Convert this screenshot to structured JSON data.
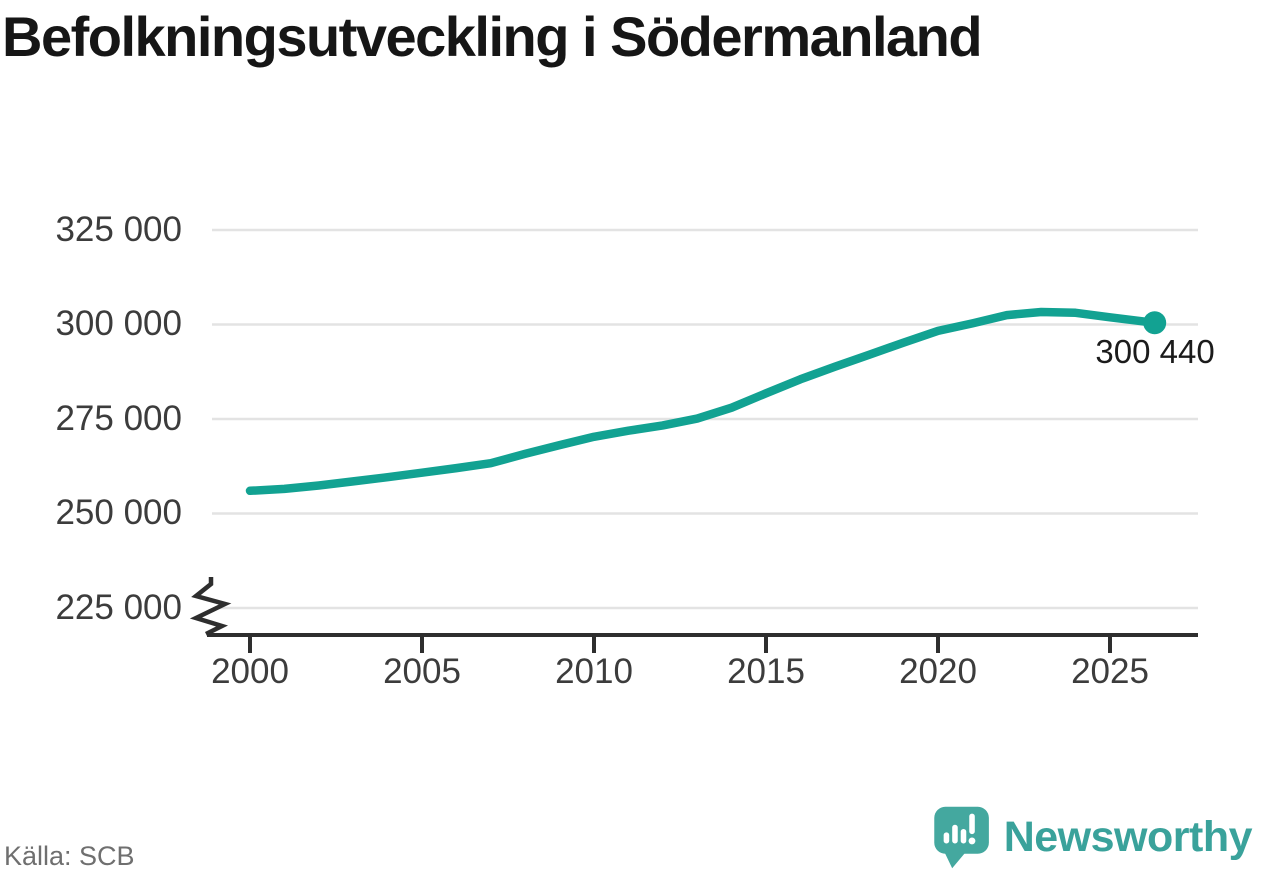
{
  "title": "Befolkningsutveckling i Södermanland",
  "source": "Källa: SCB",
  "annotation": {
    "label": "300 440"
  },
  "branding": {
    "wordmark": "Newsworthy",
    "logo_icon": "newsworthy-speech-bubble-bar-chart-icon",
    "logo_color": "#44a89f",
    "wordmark_color": "#3aa29b"
  },
  "colors": {
    "line": "#12a292",
    "grid": "#e3e3e3",
    "axis": "#2e2e2e",
    "tick_text": "#3c3c3c",
    "title_text": "#161616",
    "muted_text": "#6f6f6f",
    "background": "#ffffff"
  },
  "chart_data": {
    "type": "line",
    "title": "Befolkningsutveckling i Södermanland",
    "xlabel": "",
    "ylabel": "",
    "x_unit": "år",
    "y_unit": "invånare",
    "xlim": [
      1998.7,
      2027.6
    ],
    "ylim": [
      225000,
      332000
    ],
    "y_axis_break": true,
    "grid": "horizontal",
    "legend": "none",
    "x_ticks": [
      2000,
      2005,
      2010,
      2015,
      2020,
      2025
    ],
    "x_tick_labels": [
      "2000",
      "2005",
      "2010",
      "2015",
      "2020",
      "2025"
    ],
    "y_ticks": [
      225000,
      250000,
      275000,
      300000,
      325000
    ],
    "y_tick_labels": [
      "225 000",
      "250 000",
      "275 000",
      "300 000",
      "325 000"
    ],
    "series": [
      {
        "name": "Befolkning i Södermanland",
        "points": [
          [
            2000,
            256000
          ],
          [
            2001,
            256500
          ],
          [
            2002,
            257400
          ],
          [
            2003,
            258500
          ],
          [
            2004,
            259600
          ],
          [
            2005,
            260800
          ],
          [
            2006,
            262000
          ],
          [
            2007,
            263300
          ],
          [
            2008,
            265800
          ],
          [
            2009,
            268100
          ],
          [
            2010,
            270300
          ],
          [
            2011,
            271900
          ],
          [
            2012,
            273300
          ],
          [
            2013,
            275100
          ],
          [
            2014,
            278000
          ],
          [
            2015,
            281800
          ],
          [
            2016,
            285500
          ],
          [
            2017,
            288800
          ],
          [
            2018,
            292000
          ],
          [
            2019,
            295200
          ],
          [
            2020,
            298300
          ],
          [
            2021,
            300300
          ],
          [
            2022,
            302500
          ],
          [
            2023,
            303300
          ],
          [
            2024,
            303100
          ],
          [
            2025,
            301900
          ],
          [
            2026.3,
            300440
          ]
        ]
      }
    ],
    "last_value": 300440,
    "last_value_label": "300 440"
  }
}
